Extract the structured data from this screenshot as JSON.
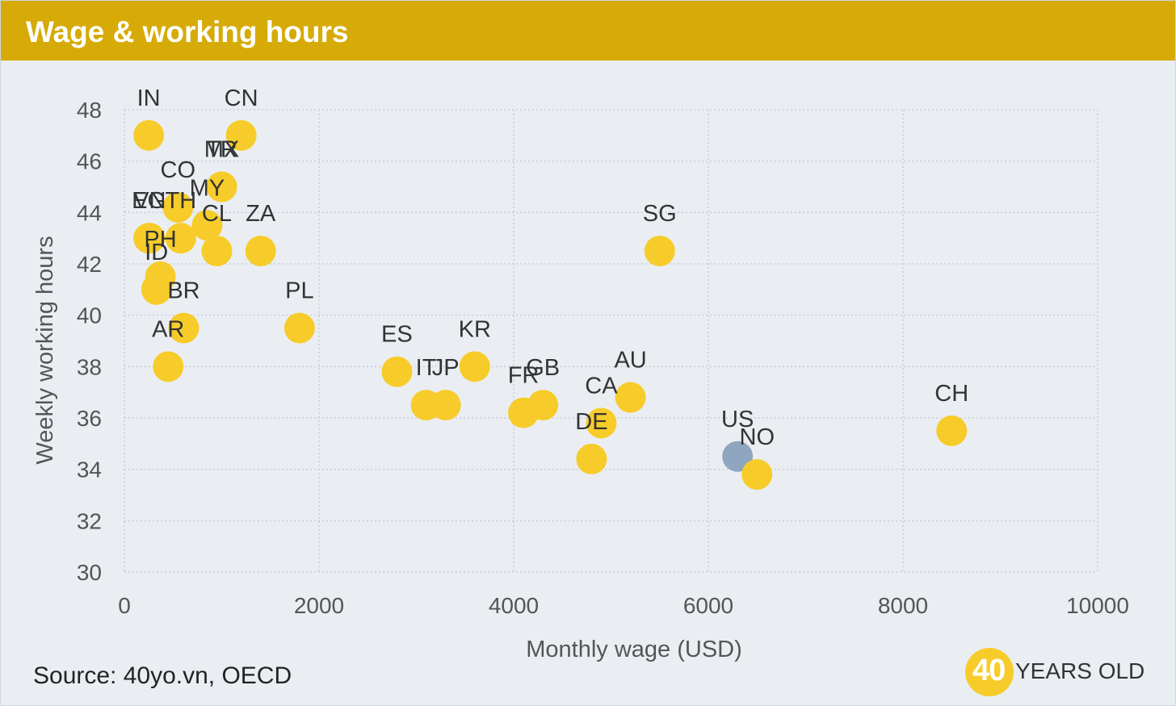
{
  "header": {
    "title": "Wage & working hours"
  },
  "chart_data": {
    "type": "scatter",
    "xlabel": "Monthly wage (USD)",
    "ylabel": "Weekly working hours",
    "xlim": [
      0,
      10000
    ],
    "ylim": [
      30,
      48
    ],
    "xticks": [
      0,
      2000,
      4000,
      6000,
      8000,
      10000
    ],
    "yticks": [
      30,
      32,
      34,
      36,
      38,
      40,
      42,
      44,
      46,
      48
    ],
    "grid": true,
    "colors": {
      "default": "#f7cc2a",
      "highlight": "#8ea6bf"
    },
    "points": [
      {
        "label": "IN",
        "x": 250,
        "y": 47.0
      },
      {
        "label": "CN",
        "x": 1200,
        "y": 47.0
      },
      {
        "label": "TR",
        "x": 1000,
        "y": 45.0
      },
      {
        "label": "CO",
        "x": 550,
        "y": 44.2
      },
      {
        "label": "MX",
        "x": 1000,
        "y": 45.0
      },
      {
        "label": "EG",
        "x": 250,
        "y": 43.0
      },
      {
        "label": "TH",
        "x": 580,
        "y": 43.0
      },
      {
        "label": "MY",
        "x": 850,
        "y": 43.5
      },
      {
        "label": "ZA",
        "x": 1400,
        "y": 42.5
      },
      {
        "label": "CL",
        "x": 950,
        "y": 42.5
      },
      {
        "label": "VN",
        "x": 260,
        "y": 43.0
      },
      {
        "label": "PH",
        "x": 370,
        "y": 41.5
      },
      {
        "label": "ID",
        "x": 330,
        "y": 41.0
      },
      {
        "label": "BR",
        "x": 610,
        "y": 39.5
      },
      {
        "label": "AR",
        "x": 450,
        "y": 38.0
      },
      {
        "label": "PL",
        "x": 1800,
        "y": 39.5
      },
      {
        "label": "ES",
        "x": 2800,
        "y": 37.8
      },
      {
        "label": "IT",
        "x": 3100,
        "y": 36.5
      },
      {
        "label": "JP",
        "x": 3300,
        "y": 36.5
      },
      {
        "label": "KR",
        "x": 3600,
        "y": 38.0
      },
      {
        "label": "FR",
        "x": 4100,
        "y": 36.2
      },
      {
        "label": "GB",
        "x": 4300,
        "y": 36.5
      },
      {
        "label": "CA",
        "x": 4900,
        "y": 35.8
      },
      {
        "label": "DE",
        "x": 4800,
        "y": 34.4
      },
      {
        "label": "AU",
        "x": 5200,
        "y": 36.8
      },
      {
        "label": "SG",
        "x": 5500,
        "y": 42.5
      },
      {
        "label": "US",
        "x": 6300,
        "y": 34.5,
        "highlight": true
      },
      {
        "label": "NO",
        "x": 6500,
        "y": 33.8
      },
      {
        "label": "CH",
        "x": 8500,
        "y": 35.5
      }
    ]
  },
  "footer": {
    "source": "Source: 40yo.vn, OECD",
    "logo_number": "40",
    "logo_text": "YEARS OLD"
  }
}
